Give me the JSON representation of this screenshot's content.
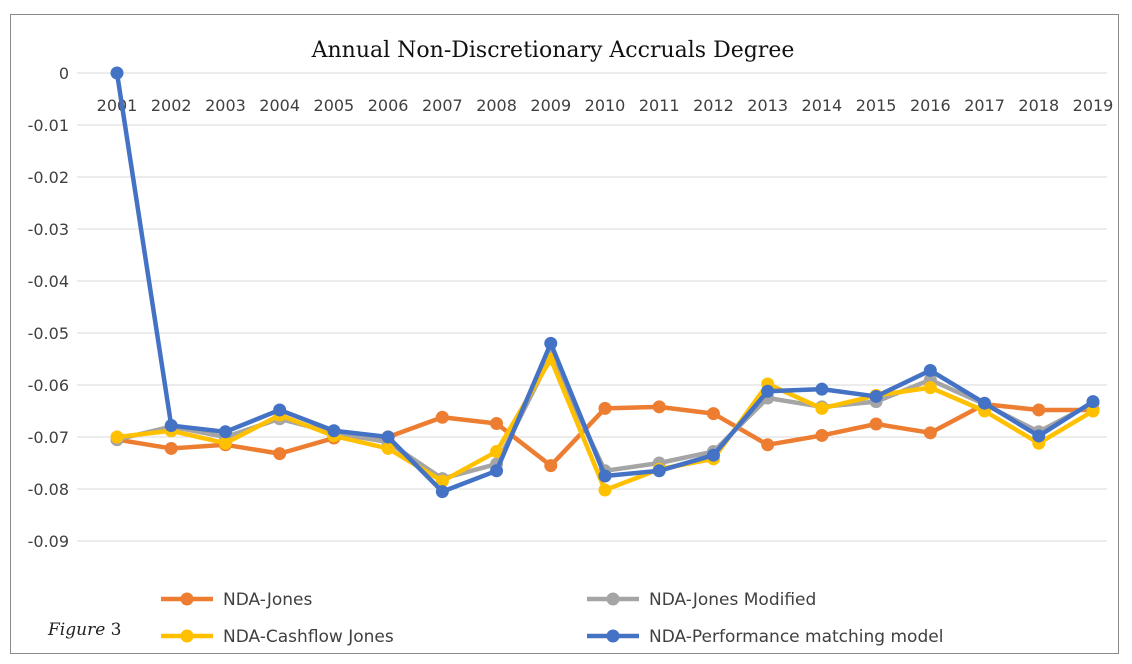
{
  "figure_caption": {
    "word": "Figure",
    "number": "3"
  },
  "chart_data": {
    "type": "line",
    "title": "Annual  Non-Discretionary Accruals Degree",
    "xlabel": "",
    "ylabel": "",
    "categories": [
      "2001",
      "2002",
      "2003",
      "2004",
      "2005",
      "2006",
      "2007",
      "2008",
      "2009",
      "2010",
      "2011",
      "2012",
      "2013",
      "2014",
      "2015",
      "2016",
      "2017",
      "2018",
      "2019"
    ],
    "ylim": [
      -0.09,
      0
    ],
    "yticks": [
      "0",
      "-0.01",
      "-0.02",
      "-0.03",
      "-0.04",
      "-0.05",
      "-0.06",
      "-0.07",
      "-0.08",
      "-0.09"
    ],
    "ytick_values": [
      0,
      -0.01,
      -0.02,
      -0.03,
      -0.04,
      -0.05,
      -0.06,
      -0.07,
      -0.08,
      -0.09
    ],
    "grid": true,
    "legend_position": "bottom",
    "series": [
      {
        "name": "NDA-Jones",
        "color": "#ED7D31",
        "values": [
          -0.0705,
          -0.0722,
          -0.0715,
          -0.0732,
          -0.0702,
          -0.07,
          -0.0662,
          -0.0674,
          -0.0755,
          -0.0645,
          -0.0642,
          -0.0655,
          -0.0715,
          -0.0697,
          -0.0675,
          -0.0692,
          -0.0637,
          -0.0648,
          -0.0648
        ]
      },
      {
        "name": "NDA-Jones Modified",
        "color": "#A5A5A5",
        "values": [
          -0.0705,
          -0.068,
          -0.07,
          -0.0665,
          -0.0692,
          -0.071,
          -0.078,
          -0.0752,
          -0.0545,
          -0.0765,
          -0.075,
          -0.0728,
          -0.0625,
          -0.0642,
          -0.0632,
          -0.059,
          -0.0637,
          -0.069,
          -0.0635
        ]
      },
      {
        "name": "NDA-Cashflow Jones",
        "color": "#FFC000",
        "values": [
          -0.07,
          -0.0688,
          -0.0712,
          -0.0658,
          -0.0698,
          -0.0722,
          -0.0785,
          -0.0728,
          -0.055,
          -0.0802,
          -0.0762,
          -0.0742,
          -0.0598,
          -0.0645,
          -0.062,
          -0.0605,
          -0.065,
          -0.0712,
          -0.065
        ]
      },
      {
        "name": "NDA-Performance matching model",
        "color": "#4472C4",
        "values": [
          0.0,
          -0.0678,
          -0.069,
          -0.0648,
          -0.0688,
          -0.07,
          -0.0805,
          -0.0765,
          -0.052,
          -0.0775,
          -0.0765,
          -0.0735,
          -0.0612,
          -0.0608,
          -0.0622,
          -0.0572,
          -0.0635,
          -0.0698,
          -0.0632
        ]
      }
    ]
  }
}
